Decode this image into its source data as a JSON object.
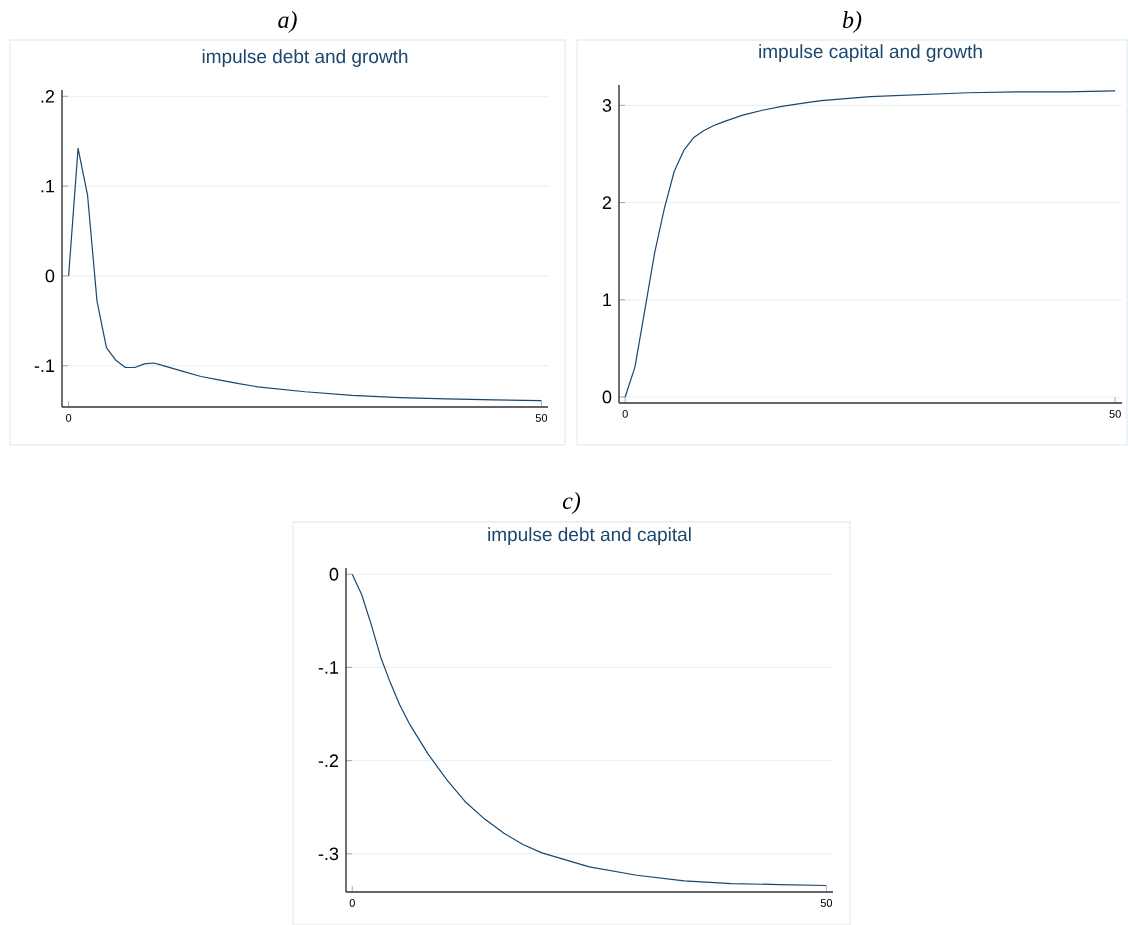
{
  "chart_data": [
    {
      "type": "line",
      "title": "a)",
      "subtitle": "impulse debt and growth",
      "color": "#1a476f",
      "grid": "y",
      "x": [
        0,
        1,
        2,
        3,
        4,
        5,
        6,
        7,
        8,
        9,
        10,
        12,
        14,
        16,
        18,
        20,
        25,
        30,
        35,
        40,
        45,
        50
      ],
      "values": [
        0,
        0.142,
        0.09,
        -0.028,
        -0.08,
        -0.094,
        -0.102,
        -0.102,
        -0.098,
        -0.097,
        -0.1,
        -0.106,
        -0.112,
        -0.116,
        -0.12,
        -0.1235,
        -0.129,
        -0.133,
        -0.1355,
        -0.137,
        -0.138,
        -0.139
      ],
      "xlim": [
        -0.7,
        50.7
      ],
      "ylim": [
        -0.146,
        0.207
      ],
      "xticks": [
        0,
        50
      ],
      "yticks": [
        {
          "value": -0.1,
          "label": "-.1"
        },
        0,
        {
          "value": 0.1,
          "label": ".1"
        },
        {
          "value": 0.2,
          "label": ".2"
        }
      ]
    },
    {
      "type": "line",
      "title": "b)",
      "subtitle": "impulse capital and growth",
      "color": "#1a476f",
      "grid": "y",
      "x": [
        0,
        1,
        2,
        3,
        4,
        5,
        6,
        7,
        8,
        9,
        10,
        12,
        14,
        16,
        18,
        20,
        25,
        30,
        35,
        40,
        45,
        50
      ],
      "values": [
        0,
        0.31,
        0.89,
        1.48,
        1.94,
        2.32,
        2.54,
        2.67,
        2.74,
        2.79,
        2.83,
        2.9,
        2.95,
        2.99,
        3.02,
        3.05,
        3.09,
        3.11,
        3.13,
        3.14,
        3.14,
        3.15
      ],
      "xlim": [
        -0.63,
        50.7
      ],
      "ylim": [
        -0.062,
        3.21
      ],
      "xticks": [
        0,
        50
      ],
      "yticks": [
        0,
        1,
        2,
        3
      ]
    },
    {
      "type": "line",
      "title": "c)",
      "subtitle": "impulse debt and capital",
      "color": "#1a476f",
      "grid": "y",
      "x": [
        0,
        1,
        2,
        3,
        4,
        5,
        6,
        8,
        10,
        12,
        14,
        16,
        18,
        20,
        25,
        30,
        35,
        40,
        45,
        50
      ],
      "values": [
        0,
        -0.022,
        -0.054,
        -0.089,
        -0.116,
        -0.14,
        -0.16,
        -0.193,
        -0.221,
        -0.245,
        -0.263,
        -0.278,
        -0.29,
        -0.299,
        -0.314,
        -0.323,
        -0.329,
        -0.332,
        -0.333,
        -0.334
      ],
      "xlim": [
        -0.66,
        50.7
      ],
      "ylim": [
        -0.341,
        0.0067
      ],
      "xticks": [
        0,
        50
      ],
      "yticks": [
        {
          "value": -0.3,
          "label": "-.3"
        },
        {
          "value": -0.2,
          "label": "-.2"
        },
        {
          "value": -0.1,
          "label": "-.1"
        },
        0
      ]
    }
  ]
}
